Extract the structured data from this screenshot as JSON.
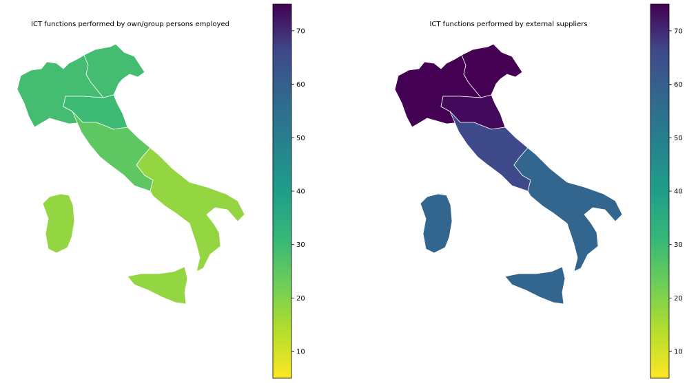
{
  "maps": [
    {
      "title": "ICT functions performed by own/group persons employed",
      "colorbar": {
        "min": 5,
        "max": 75,
        "ticks": [
          10,
          20,
          30,
          40,
          50,
          60,
          70
        ]
      },
      "regions": {
        "north_west": 29,
        "north_east": 29,
        "emilia_romagna": 30,
        "centre": 25,
        "south": 18,
        "islands": 18
      }
    },
    {
      "title": "ICT functions performed by external suppliers",
      "colorbar": {
        "min": 5,
        "max": 75,
        "ticks": [
          10,
          20,
          30,
          40,
          50,
          60,
          70
        ]
      },
      "regions": {
        "north_west": 75,
        "north_east": 75,
        "emilia_romagna": 74,
        "centre": 66,
        "south": 58,
        "islands": 58
      }
    }
  ],
  "colormap": "viridis_r"
}
